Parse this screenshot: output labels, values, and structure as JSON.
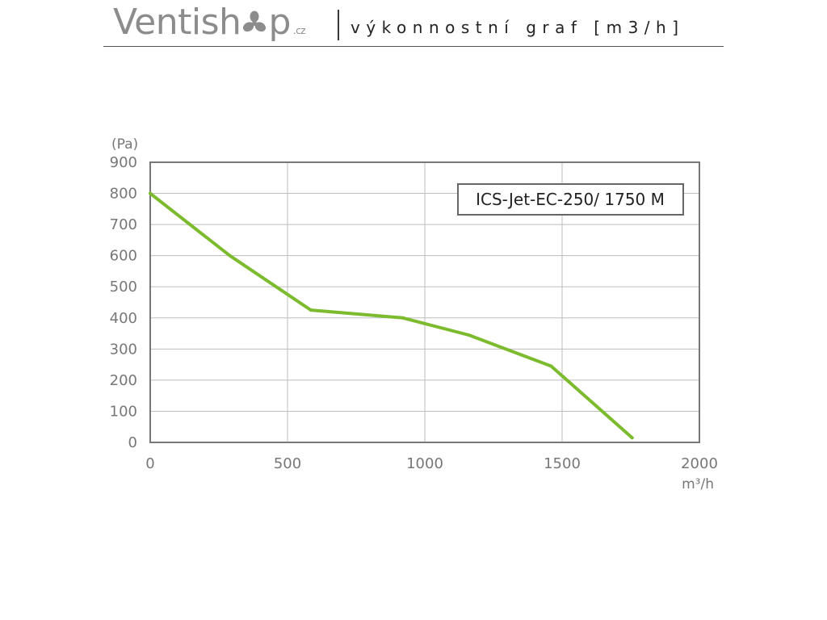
{
  "header": {
    "brand_prefix": "Ventish",
    "brand_suffix": "p",
    "brand_tld": ".cz",
    "subtitle": "výkonnostní graf [m3/h]",
    "logo_icon": "fan-icon"
  },
  "chart_data": {
    "type": "line",
    "ylabel": "(Pa)",
    "xlabel": "m³/h",
    "xlim": [
      0,
      2000
    ],
    "ylim": [
      0,
      900
    ],
    "xticks": [
      0,
      500,
      1000,
      1500,
      2000
    ],
    "yticks": [
      0,
      100,
      200,
      300,
      400,
      500,
      600,
      700,
      800,
      900
    ],
    "grid": true,
    "legend_position": "top-right",
    "series": [
      {
        "name": "ICS-Jet-EC-250/ 1750 M",
        "color": "#7cbb2e",
        "x": [
          0,
          290,
          585,
          920,
          1160,
          1460,
          1755
        ],
        "y": [
          800,
          600,
          425,
          400,
          345,
          245,
          15
        ]
      }
    ]
  }
}
